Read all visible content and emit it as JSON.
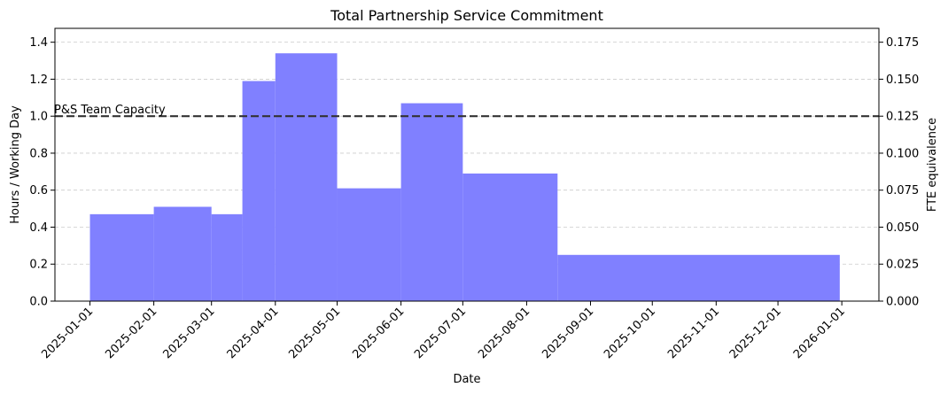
{
  "chart_data": {
    "type": "bar",
    "title": "Total Partnership Service Commitment",
    "xlabel": "Date",
    "ylabel": "Hours / Working Day",
    "y2label": "FTE equivalence",
    "ylim": [
      0,
      1.475
    ],
    "y2lim": [
      0,
      0.184375
    ],
    "x_ticks": [
      "2025-01-01",
      "2025-02-01",
      "2025-03-01",
      "2025-04-01",
      "2025-05-01",
      "2025-06-01",
      "2025-07-01",
      "2025-08-01",
      "2025-09-01",
      "2025-10-01",
      "2025-11-01",
      "2025-12-01",
      "2026-01-01"
    ],
    "y_ticks": [
      "0.0",
      "0.2",
      "0.4",
      "0.6",
      "0.8",
      "1.0",
      "1.2",
      "1.4"
    ],
    "y2_ticks": [
      "0.000",
      "0.025",
      "0.050",
      "0.075",
      "0.100",
      "0.125",
      "0.150",
      "0.175"
    ],
    "grid": "horizontal dashed",
    "bar_color": "#8080ff",
    "segments": [
      {
        "start": "2025-01-01",
        "end": "2025-02-01",
        "value": 0.47
      },
      {
        "start": "2025-02-01",
        "end": "2025-03-01",
        "value": 0.51
      },
      {
        "start": "2025-03-01",
        "end": "2025-03-16",
        "value": 0.47
      },
      {
        "start": "2025-03-16",
        "end": "2025-04-01",
        "value": 1.19
      },
      {
        "start": "2025-04-01",
        "end": "2025-05-01",
        "value": 1.34
      },
      {
        "start": "2025-05-01",
        "end": "2025-06-01",
        "value": 0.61
      },
      {
        "start": "2025-06-01",
        "end": "2025-07-01",
        "value": 1.07
      },
      {
        "start": "2025-07-01",
        "end": "2025-08-16",
        "value": 0.69
      },
      {
        "start": "2025-08-16",
        "end": "2025-12-31",
        "value": 0.25
      }
    ],
    "reference_line": {
      "label": "P&S Team Capacity",
      "value": 1.0,
      "color": "#333333",
      "style": "dashed"
    }
  }
}
